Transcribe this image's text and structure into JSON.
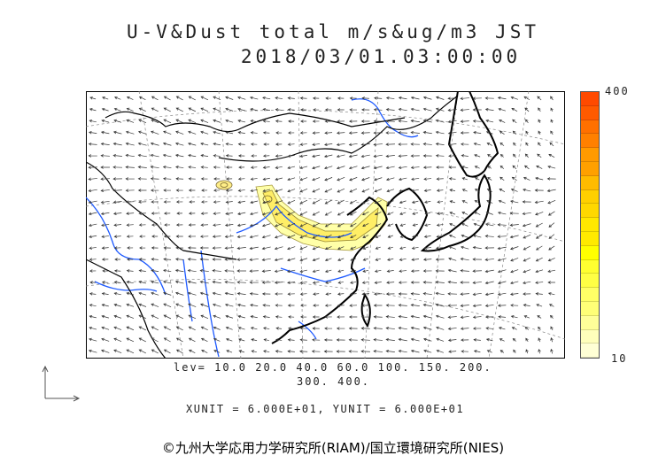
{
  "title": {
    "line1": "U-V&Dust total m/s&ug/m3 JST",
    "line2": "2018/03/01.03:00:00"
  },
  "colorbar": {
    "max_label": "400",
    "min_label": "10",
    "colors_top_to_bottom": [
      "#ff4a00",
      "#ff5a00",
      "#ff7000",
      "#ff8000",
      "#ff9a00",
      "#ffa000",
      "#ffbb00",
      "#ffd000",
      "#ffd800",
      "#ffe800",
      "#ffea00",
      "#ffff00",
      "#ffff30",
      "#ffff44",
      "#ffff66",
      "#ffff77",
      "#ffff99",
      "#ffffbb",
      "#ffffd5"
    ]
  },
  "contour_legend": {
    "line1": "lev= 10.0 20.0 40.0 60.0 100. 150. 200.",
    "line2": "300. 400."
  },
  "units": "XUNIT = 6.000E+01, YUNIT = 6.000E+01",
  "credit": "©九州大学応用力学研究所(RIAM)/国立環境研究所(NIES)",
  "colors": {
    "coast": "#000000",
    "river": "#1e5aff",
    "arrow": "#333333",
    "dust_light": "#ffffa8",
    "dust_mid": "#ffee66"
  }
}
